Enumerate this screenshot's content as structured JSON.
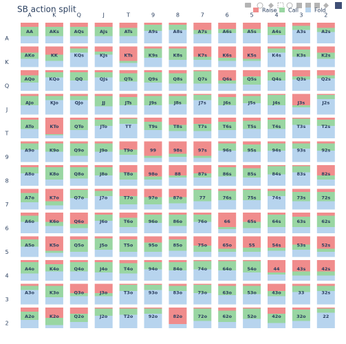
{
  "chart_data": {
    "type": "stacked-grid",
    "title": "SB action split",
    "columns": [
      "A",
      "K",
      "Q",
      "J",
      "T",
      "9",
      "8",
      "7",
      "6",
      "5",
      "4",
      "3",
      "2"
    ],
    "rows": [
      "A",
      "K",
      "Q",
      "J",
      "T",
      "9",
      "8",
      "7",
      "6",
      "5",
      "4",
      "3",
      "2"
    ],
    "cell_labels": [
      [
        "AA",
        "AKs",
        "AQs",
        "AJs",
        "ATs",
        "A9s",
        "A8s",
        "A7s",
        "A6s",
        "A5s",
        "A4s",
        "A3s",
        "A2s"
      ],
      [
        "AKo",
        "KK",
        "KQs",
        "KJs",
        "KTs",
        "K9s",
        "K8s",
        "K7s",
        "K6s",
        "K5s",
        "K4s",
        "K3s",
        "K2s"
      ],
      [
        "AQo",
        "KQo",
        "QQ",
        "QJs",
        "QTs",
        "Q9s",
        "Q8s",
        "Q7s",
        "Q6s",
        "Q5s",
        "Q4s",
        "Q3s",
        "Q2s"
      ],
      [
        "AJo",
        "KJo",
        "QJo",
        "JJ",
        "JTs",
        "J9s",
        "J8s",
        "J7s",
        "J6s",
        "J5s",
        "J4s",
        "J3s",
        "J2s"
      ],
      [
        "ATo",
        "KTo",
        "QTo",
        "JTo",
        "TT",
        "T9s",
        "T8s",
        "T7s",
        "T6s",
        "T5s",
        "T4s",
        "T3s",
        "T2s"
      ],
      [
        "A9o",
        "K9o",
        "Q9o",
        "J9o",
        "T9o",
        "99",
        "98s",
        "97s",
        "96s",
        "95s",
        "94s",
        "93s",
        "92s"
      ],
      [
        "A8o",
        "K8o",
        "Q8o",
        "J8o",
        "T8o",
        "98o",
        "88",
        "87s",
        "86s",
        "85s",
        "84s",
        "83s",
        "82s"
      ],
      [
        "A7o",
        "K7o",
        "Q7o",
        "J7o",
        "T7o",
        "97o",
        "87o",
        "77",
        "76s",
        "75s",
        "74s",
        "73s",
        "72s"
      ],
      [
        "A6o",
        "K6o",
        "Q6o",
        "J6o",
        "T6o",
        "96o",
        "86o",
        "76o",
        "66",
        "65s",
        "64s",
        "63s",
        "62s"
      ],
      [
        "A5o",
        "K5o",
        "Q5o",
        "J5o",
        "T5o",
        "95o",
        "85o",
        "75o",
        "65o",
        "55",
        "54s",
        "53s",
        "52s"
      ],
      [
        "A4o",
        "K4o",
        "Q4o",
        "J4o",
        "T4o",
        "94o",
        "84o",
        "74o",
        "64o",
        "54o",
        "44",
        "43s",
        "42s"
      ],
      [
        "A3o",
        "K3o",
        "Q3o",
        "J3o",
        "T3o",
        "93o",
        "83o",
        "73o",
        "63o",
        "53o",
        "43o",
        "33",
        "32s"
      ],
      [
        "A2o",
        "K2o",
        "Q2o",
        "J2o",
        "T2o",
        "92o",
        "82o",
        "72o",
        "62o",
        "52o",
        "42o",
        "32o",
        "22"
      ]
    ],
    "series": [
      {
        "name": "Raise",
        "color": "#f08c8c",
        "values": [
          [
            20,
            20,
            20,
            20,
            25,
            10,
            10,
            35,
            30,
            30,
            20,
            15,
            25
          ],
          [
            30,
            40,
            10,
            25,
            70,
            10,
            10,
            50,
            55,
            60,
            10,
            15,
            30
          ],
          [
            25,
            10,
            10,
            10,
            15,
            10,
            15,
            5,
            50,
            30,
            10,
            30,
            25
          ],
          [
            10,
            10,
            10,
            10,
            15,
            10,
            10,
            5,
            15,
            10,
            5,
            55,
            5
          ],
          [
            10,
            80,
            10,
            10,
            5,
            20,
            35,
            30,
            20,
            15,
            10,
            5,
            10
          ],
          [
            10,
            10,
            10,
            10,
            40,
            70,
            60,
            70,
            10,
            15,
            10,
            10,
            10
          ],
          [
            10,
            10,
            10,
            10,
            35,
            55,
            50,
            40,
            10,
            15,
            5,
            5,
            50
          ],
          [
            20,
            60,
            5,
            10,
            35,
            40,
            40,
            5,
            10,
            5,
            10,
            15,
            15
          ],
          [
            15,
            45,
            55,
            10,
            25,
            10,
            10,
            10,
            70,
            45,
            10,
            20,
            15
          ],
          [
            15,
            70,
            15,
            10,
            15,
            30,
            15,
            45,
            60,
            55,
            55,
            40,
            60
          ],
          [
            10,
            20,
            10,
            10,
            15,
            10,
            10,
            5,
            5,
            5,
            60,
            55,
            55
          ],
          [
            10,
            10,
            45,
            45,
            5,
            5,
            10,
            5,
            10,
            10,
            35,
            10,
            10
          ],
          [
            20,
            50,
            30,
            5,
            5,
            5,
            80,
            5,
            15,
            5,
            30,
            10,
            5
          ]
        ]
      },
      {
        "name": "Call",
        "color": "#99d6a2",
        "values": [
          [
            45,
            45,
            45,
            45,
            40,
            30,
            25,
            20,
            20,
            20,
            40,
            20,
            20
          ],
          [
            30,
            30,
            20,
            15,
            10,
            45,
            55,
            15,
            15,
            10,
            20,
            35,
            30
          ],
          [
            35,
            25,
            40,
            25,
            40,
            50,
            50,
            60,
            15,
            40,
            40,
            15,
            15
          ],
          [
            45,
            20,
            20,
            50,
            40,
            45,
            40,
            25,
            40,
            35,
            50,
            10,
            20
          ],
          [
            45,
            5,
            50,
            30,
            25,
            40,
            30,
            35,
            40,
            40,
            45,
            30,
            30
          ],
          [
            30,
            40,
            60,
            40,
            25,
            10,
            15,
            10,
            35,
            35,
            35,
            25,
            35
          ],
          [
            30,
            60,
            55,
            40,
            35,
            15,
            10,
            20,
            45,
            45,
            40,
            30,
            20
          ],
          [
            45,
            20,
            40,
            25,
            40,
            35,
            30,
            55,
            45,
            50,
            25,
            45,
            45
          ],
          [
            30,
            20,
            20,
            30,
            45,
            40,
            55,
            35,
            10,
            30,
            60,
            50,
            55
          ],
          [
            35,
            10,
            60,
            55,
            60,
            45,
            55,
            30,
            15,
            20,
            15,
            25,
            15
          ],
          [
            55,
            35,
            45,
            50,
            50,
            35,
            40,
            40,
            45,
            55,
            10,
            20,
            20
          ],
          [
            20,
            55,
            15,
            15,
            30,
            25,
            25,
            40,
            45,
            40,
            25,
            30,
            25
          ],
          [
            40,
            35,
            40,
            35,
            30,
            25,
            0,
            60,
            55,
            50,
            45,
            55,
            20
          ]
        ]
      },
      {
        "name": "Fold",
        "color": "#b7d4ee",
        "values": [
          [
            35,
            35,
            35,
            35,
            35,
            60,
            65,
            45,
            50,
            50,
            40,
            65,
            55
          ],
          [
            40,
            30,
            70,
            60,
            20,
            45,
            35,
            35,
            30,
            30,
            70,
            50,
            40
          ],
          [
            40,
            65,
            50,
            65,
            45,
            40,
            35,
            35,
            35,
            30,
            50,
            55,
            60
          ],
          [
            45,
            70,
            70,
            40,
            45,
            45,
            50,
            70,
            45,
            55,
            45,
            35,
            75
          ],
          [
            45,
            15,
            40,
            60,
            70,
            40,
            35,
            35,
            40,
            45,
            45,
            65,
            60
          ],
          [
            60,
            50,
            30,
            50,
            35,
            20,
            25,
            20,
            55,
            50,
            55,
            65,
            55
          ],
          [
            60,
            30,
            35,
            50,
            30,
            30,
            40,
            40,
            45,
            40,
            55,
            65,
            30
          ],
          [
            35,
            20,
            55,
            65,
            25,
            25,
            30,
            40,
            45,
            45,
            65,
            40,
            40
          ],
          [
            55,
            35,
            25,
            60,
            30,
            50,
            35,
            55,
            20,
            25,
            30,
            30,
            30
          ],
          [
            50,
            20,
            25,
            35,
            25,
            25,
            30,
            25,
            25,
            25,
            30,
            35,
            25
          ],
          [
            35,
            45,
            45,
            40,
            35,
            55,
            50,
            55,
            50,
            40,
            30,
            25,
            25
          ],
          [
            70,
            35,
            40,
            40,
            65,
            70,
            65,
            55,
            45,
            50,
            40,
            60,
            65
          ],
          [
            40,
            15,
            30,
            60,
            65,
            70,
            20,
            35,
            30,
            45,
            25,
            35,
            75
          ]
        ]
      }
    ]
  }
}
